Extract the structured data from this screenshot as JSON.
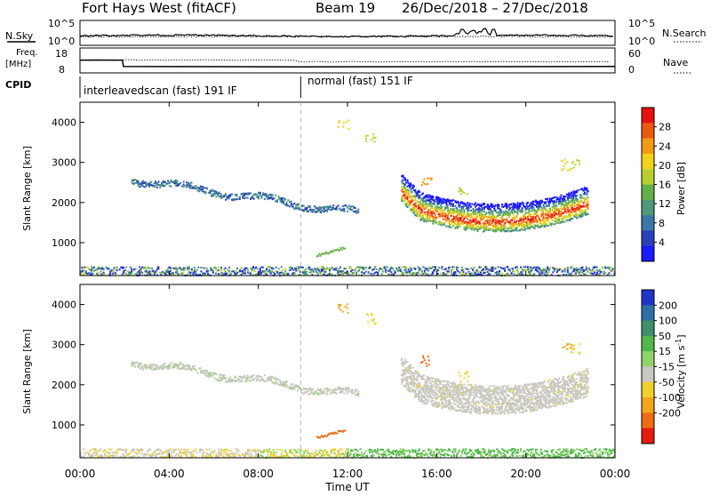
{
  "header": {
    "title": "Fort Hays West (fitACF)",
    "beam": "Beam 19",
    "date_range": "26/Dec/2018 – 27/Dec/2018"
  },
  "noise_panel": {
    "left_label": "N.Sky",
    "right_label": "N.Search",
    "left_ticks": [
      "10^5",
      "10^0"
    ],
    "right_ticks": [
      "10^5",
      "10^0"
    ]
  },
  "freq_panel": {
    "left_label_line1": "Freq.",
    "left_label_line2": "[MHz]",
    "left_ticks": [
      "18",
      "8"
    ],
    "right_label": "Nave",
    "right_ticks": [
      "60",
      "0"
    ]
  },
  "cpid_panel": {
    "label": "CPID",
    "mode1": "interleavedscan (fast) 191 IF",
    "mode2": "normal (fast) 151 IF"
  },
  "power_panel": {
    "ylabel": "Slant Range [km]",
    "yticks": [
      "1000",
      "2000",
      "3000",
      "4000"
    ],
    "colorbar_label": "Power [dB]",
    "colorbar_ticks": [
      "4",
      "8",
      "12",
      "16",
      "20",
      "24",
      "28"
    ],
    "colors": [
      "#1a1aff",
      "#2a3fb8",
      "#3a78a8",
      "#4f9a78",
      "#63b04a",
      "#b7cf2e",
      "#f2d21a",
      "#f29a12",
      "#ec5a10",
      "#e61010"
    ]
  },
  "velocity_panel": {
    "ylabel": "Slant Range [km]",
    "yticks": [
      "1000",
      "2000",
      "3000",
      "4000"
    ],
    "colorbar_label_main": "Velocity [m s",
    "colorbar_label_sup": "-1",
    "colorbar_label_end": "]",
    "colorbar_ticks": [
      "200",
      "100",
      "50",
      "15",
      "-15",
      "-50",
      "-100",
      "-200"
    ],
    "colors": [
      "#2233cc",
      "#2f6fa8",
      "#3e8f6a",
      "#53b84a",
      "#8fd46a",
      "#c8c8c0",
      "#f0d02a",
      "#f3a51a",
      "#ee6a14",
      "#e61a10"
    ]
  },
  "x_axis": {
    "ticks": [
      "00:00",
      "04:00",
      "08:00",
      "12:00",
      "16:00",
      "20:00",
      "00:00"
    ],
    "label": "Time UT"
  },
  "chart_data": {
    "type": "heatmap",
    "x_range_hours": [
      0,
      24
    ],
    "y_range_km": [
      180,
      4500
    ],
    "mode_change_hour": 9.9,
    "frequency_mhz": [
      {
        "t": 0,
        "f": 16
      },
      {
        "t": 1.9,
        "f": 16
      },
      {
        "t": 1.95,
        "f": 12
      },
      {
        "t": 9.9,
        "f": 11.8
      },
      {
        "t": 24,
        "f": 12
      }
    ],
    "echo_regions": [
      {
        "name": "early-F-region",
        "t0": 2.3,
        "t1": 12.5,
        "r0": 2600,
        "r1": 1750,
        "power_db": 8,
        "velocity": 0
      },
      {
        "name": "afternoon-F-region",
        "t0": 14.4,
        "t1": 22.8,
        "r0": 1500,
        "r1": 1900,
        "power_db": 26,
        "velocity": 0
      },
      {
        "name": "near-range-ground",
        "t0": 0,
        "t1": 24,
        "r0": 250,
        "r1": 400,
        "power_db": 14,
        "velocity": -15
      },
      {
        "name": "spread-echo-11h",
        "t0": 10.6,
        "t1": 11.9,
        "r0": 700,
        "r1": 900,
        "power_db": 14,
        "velocity": -60
      }
    ]
  }
}
